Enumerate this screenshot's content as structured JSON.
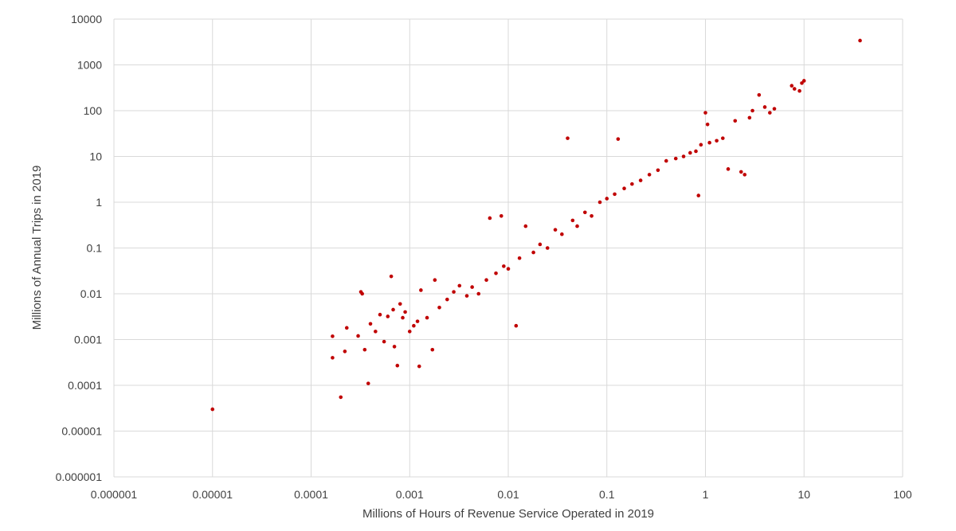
{
  "chart_data": {
    "type": "scatter",
    "title": "",
    "xlabel": "Millions of Hours of Revenue Service Operated in 2019",
    "ylabel": "Millions of Annual Trips in 2019",
    "x_scale": "log",
    "y_scale": "log",
    "xlim": [
      1e-06,
      100
    ],
    "ylim": [
      1e-06,
      10000
    ],
    "x_ticks": [
      "0.000001",
      "0.00001",
      "0.0001",
      "0.001",
      "0.01",
      "0.1",
      "1",
      "10",
      "100"
    ],
    "y_ticks": [
      "0.000001",
      "0.00001",
      "0.0001",
      "0.001",
      "0.01",
      "0.1",
      "1",
      "10",
      "100",
      "1000",
      "10000"
    ],
    "grid": true,
    "legend": "none",
    "marker_color": "#c00000",
    "series": [
      {
        "points": [
          [
            1e-05,
            3e-05
          ],
          [
            0.000165,
            0.00118
          ],
          [
            0.000165,
            0.0004
          ],
          [
            0.0002,
            5.5e-05
          ],
          [
            0.00022,
            0.00055
          ],
          [
            0.00023,
            0.0018
          ],
          [
            0.0003,
            0.0012
          ],
          [
            0.00032,
            0.011
          ],
          [
            0.00033,
            0.01
          ],
          [
            0.00035,
            0.0006
          ],
          [
            0.00038,
            0.00011
          ],
          [
            0.0004,
            0.0022
          ],
          [
            0.00045,
            0.0015
          ],
          [
            0.0005,
            0.0035
          ],
          [
            0.00055,
            0.0009
          ],
          [
            0.0006,
            0.0032
          ],
          [
            0.00065,
            0.024
          ],
          [
            0.00068,
            0.0045
          ],
          [
            0.0007,
            0.0007
          ],
          [
            0.00075,
            0.00027
          ],
          [
            0.0008,
            0.006
          ],
          [
            0.00085,
            0.003
          ],
          [
            0.0009,
            0.004
          ],
          [
            0.001,
            0.0015
          ],
          [
            0.0011,
            0.002
          ],
          [
            0.0012,
            0.0025
          ],
          [
            0.00125,
            0.00026
          ],
          [
            0.0013,
            0.012
          ],
          [
            0.0015,
            0.003
          ],
          [
            0.0017,
            0.0006
          ],
          [
            0.0018,
            0.02
          ],
          [
            0.002,
            0.005
          ],
          [
            0.0024,
            0.0075
          ],
          [
            0.0028,
            0.011
          ],
          [
            0.0032,
            0.015
          ],
          [
            0.0038,
            0.009
          ],
          [
            0.0043,
            0.014
          ],
          [
            0.005,
            0.01
          ],
          [
            0.006,
            0.02
          ],
          [
            0.0065,
            0.45
          ],
          [
            0.0075,
            0.028
          ],
          [
            0.0085,
            0.5
          ],
          [
            0.009,
            0.04
          ],
          [
            0.01,
            0.035
          ],
          [
            0.012,
            0.002
          ],
          [
            0.013,
            0.06
          ],
          [
            0.015,
            0.3
          ],
          [
            0.018,
            0.08
          ],
          [
            0.021,
            0.12
          ],
          [
            0.025,
            0.1
          ],
          [
            0.03,
            0.25
          ],
          [
            0.035,
            0.2
          ],
          [
            0.04,
            25
          ],
          [
            0.045,
            0.4
          ],
          [
            0.05,
            0.3
          ],
          [
            0.06,
            0.6
          ],
          [
            0.07,
            0.5
          ],
          [
            0.085,
            1.0
          ],
          [
            0.1,
            1.2
          ],
          [
            0.12,
            1.5
          ],
          [
            0.13,
            24
          ],
          [
            0.15,
            2.0
          ],
          [
            0.18,
            2.5
          ],
          [
            0.22,
            3.0
          ],
          [
            0.27,
            4.0
          ],
          [
            0.33,
            5.0
          ],
          [
            0.4,
            8.0
          ],
          [
            0.5,
            9.0
          ],
          [
            0.6,
            10.0
          ],
          [
            0.7,
            12.0
          ],
          [
            0.8,
            13.0
          ],
          [
            0.85,
            1.4
          ],
          [
            0.9,
            18.0
          ],
          [
            1.0,
            90.0
          ],
          [
            1.05,
            50.0
          ],
          [
            1.1,
            20.0
          ],
          [
            1.3,
            22.0
          ],
          [
            1.5,
            25.0
          ],
          [
            1.7,
            5.3
          ],
          [
            2.0,
            60.0
          ],
          [
            2.3,
            4.6
          ],
          [
            2.5,
            4.0
          ],
          [
            2.8,
            70.0
          ],
          [
            3.0,
            100.0
          ],
          [
            3.5,
            220.0
          ],
          [
            4.0,
            120.0
          ],
          [
            4.5,
            90.0
          ],
          [
            5.0,
            110.0
          ],
          [
            7.5,
            350.0
          ],
          [
            8.0,
            300.0
          ],
          [
            9.0,
            270.0
          ],
          [
            9.5,
            400.0
          ],
          [
            10.0,
            450.0
          ],
          [
            37.0,
            3400.0
          ]
        ]
      }
    ]
  }
}
